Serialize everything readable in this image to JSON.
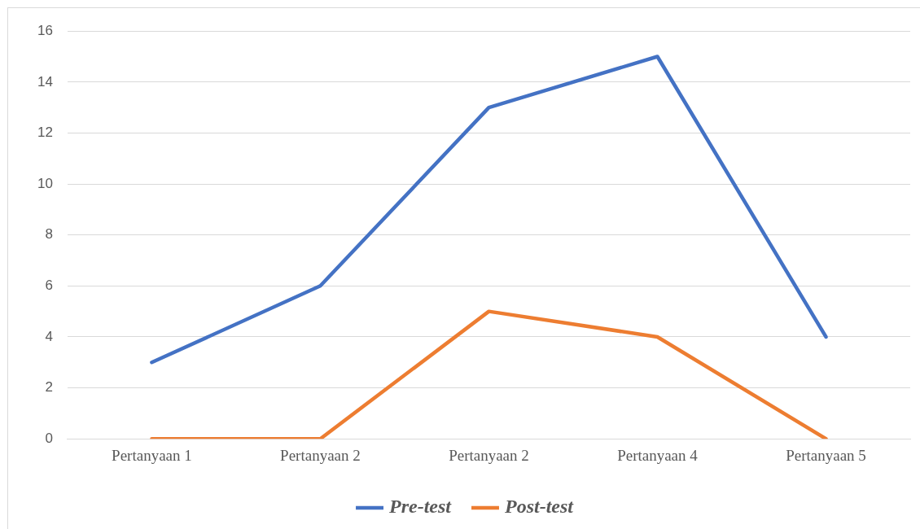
{
  "chart_data": {
    "type": "line",
    "categories": [
      "Pertanyaan 1",
      "Pertanyaan 2",
      "Pertanyaan 2",
      "Pertanyaan 4",
      "Pertanyaan 5"
    ],
    "series": [
      {
        "name": "Pre-test",
        "color": "#4472c4",
        "values": [
          3,
          6,
          13,
          15,
          4
        ]
      },
      {
        "name": "Post-test",
        "color": "#ed7d31",
        "values": [
          0,
          0,
          5,
          4,
          0
        ]
      }
    ],
    "ylim": [
      0,
      16
    ],
    "yticks": [
      0,
      2,
      4,
      6,
      8,
      10,
      12,
      14,
      16
    ],
    "grid": "y",
    "legend": "bottom",
    "marker": "none",
    "line_style": "solid"
  }
}
